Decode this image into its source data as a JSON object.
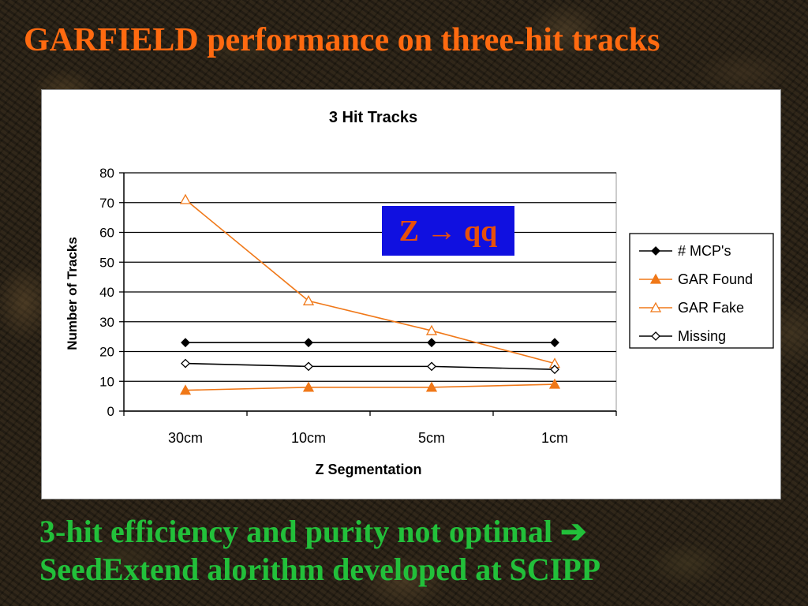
{
  "slide": {
    "title": "GARFIELD performance on three-hit tracks",
    "callout": {
      "symbol": "Z",
      "arrow": "→",
      "result": "qq"
    },
    "bottom_line1": "3-hit efficiency and purity not optimal",
    "bottom_arrow": "➔",
    "bottom_line2": "SeedExtend alorithm developed at SCIPP"
  },
  "colors": {
    "title": "#ff6a10",
    "bottom_text": "#22c03a",
    "callout_bg": "#1010e0",
    "callout_text": "#e8500a",
    "black_series": "#000000",
    "orange_series": "#f07818"
  },
  "chart_data": {
    "type": "line",
    "title": "3 Hit Tracks",
    "xlabel": "Z Segmentation",
    "ylabel": "Number of Tracks",
    "categories": [
      "30cm",
      "10cm",
      "5cm",
      "1cm"
    ],
    "ylim": [
      0,
      80
    ],
    "yticks": [
      0,
      10,
      20,
      30,
      40,
      50,
      60,
      70,
      80
    ],
    "grid": true,
    "legend": "right",
    "series": [
      {
        "name": "# MCP's",
        "values": [
          23,
          23,
          23,
          23
        ],
        "color": "#000000",
        "marker": "filled-diamond"
      },
      {
        "name": "GAR Found",
        "values": [
          7,
          8,
          8,
          9
        ],
        "color": "#f07818",
        "marker": "filled-triangle"
      },
      {
        "name": "GAR Fake",
        "values": [
          71,
          37,
          27,
          16
        ],
        "color": "#f07818",
        "marker": "open-triangle"
      },
      {
        "name": "Missing",
        "values": [
          16,
          15,
          15,
          14
        ],
        "color": "#000000",
        "marker": "open-diamond"
      }
    ]
  }
}
